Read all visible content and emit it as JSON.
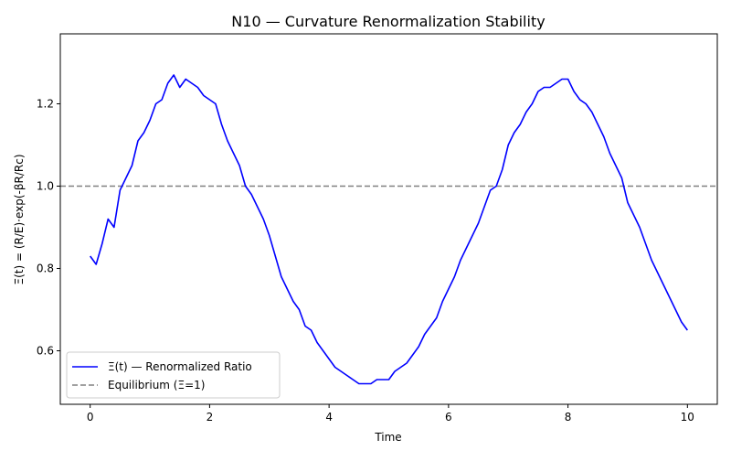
{
  "chart_data": {
    "type": "line",
    "title": "N10 — Curvature Renormalization Stability",
    "xlabel": "Time",
    "ylabel": "Ξ(t) = (R/E)·exp(-βR/Rc)",
    "xlim": [
      -0.5,
      10.5
    ],
    "ylim": [
      0.47,
      1.37
    ],
    "xticks": [
      0,
      2,
      4,
      6,
      8,
      10
    ],
    "yticks": [
      0.6,
      0.8,
      1.0,
      1.2
    ],
    "xtick_labels": [
      "0",
      "2",
      "4",
      "6",
      "8",
      "10"
    ],
    "ytick_labels": [
      "0.6",
      "0.8",
      "1.0",
      "1.2"
    ],
    "grid": false,
    "legend_position": "lower-left",
    "series": [
      {
        "name": "Ξ(t) — Renormalized Ratio",
        "color": "#0000ff",
        "style": "solid",
        "x": [
          0,
          0.1,
          0.2,
          0.3,
          0.4,
          0.5,
          0.6,
          0.7,
          0.8,
          0.9,
          1.0,
          1.1,
          1.2,
          1.3,
          1.4,
          1.5,
          1.6,
          1.7,
          1.8,
          1.9,
          2.0,
          2.1,
          2.2,
          2.3,
          2.4,
          2.5,
          2.6,
          2.7,
          2.8,
          2.9,
          3.0,
          3.1,
          3.2,
          3.3,
          3.4,
          3.5,
          3.6,
          3.7,
          3.8,
          3.9,
          4.0,
          4.1,
          4.2,
          4.3,
          4.4,
          4.5,
          4.6,
          4.7,
          4.8,
          4.9,
          5.0,
          5.1,
          5.2,
          5.3,
          5.4,
          5.5,
          5.6,
          5.7,
          5.8,
          5.9,
          6.0,
          6.1,
          6.2,
          6.3,
          6.4,
          6.5,
          6.6,
          6.7,
          6.8,
          6.9,
          7.0,
          7.1,
          7.2,
          7.3,
          7.4,
          7.5,
          7.6,
          7.7,
          7.8,
          7.9,
          8.0,
          8.1,
          8.2,
          8.3,
          8.4,
          8.5,
          8.6,
          8.7,
          8.8,
          8.9,
          9.0,
          9.1,
          9.2,
          9.3,
          9.4,
          9.5,
          9.6,
          9.7,
          9.8,
          9.9,
          10.0
        ],
        "y": [
          0.83,
          0.81,
          0.86,
          0.92,
          0.9,
          0.99,
          1.02,
          1.05,
          1.11,
          1.13,
          1.16,
          1.2,
          1.21,
          1.25,
          1.27,
          1.24,
          1.26,
          1.25,
          1.24,
          1.22,
          1.21,
          1.2,
          1.15,
          1.11,
          1.08,
          1.05,
          1.0,
          0.98,
          0.95,
          0.92,
          0.88,
          0.83,
          0.78,
          0.75,
          0.72,
          0.7,
          0.66,
          0.65,
          0.62,
          0.6,
          0.58,
          0.56,
          0.55,
          0.54,
          0.53,
          0.52,
          0.52,
          0.52,
          0.53,
          0.53,
          0.53,
          0.55,
          0.56,
          0.57,
          0.59,
          0.61,
          0.64,
          0.66,
          0.68,
          0.72,
          0.75,
          0.78,
          0.82,
          0.85,
          0.88,
          0.91,
          0.95,
          0.99,
          1.0,
          1.04,
          1.1,
          1.13,
          1.15,
          1.18,
          1.2,
          1.23,
          1.24,
          1.24,
          1.25,
          1.26,
          1.26,
          1.23,
          1.21,
          1.2,
          1.18,
          1.15,
          1.12,
          1.08,
          1.05,
          1.02,
          0.96,
          0.93,
          0.9,
          0.86,
          0.82,
          0.79,
          0.76,
          0.73,
          0.7,
          0.67,
          0.65
        ]
      },
      {
        "name": "Equilibrium (Ξ=1)",
        "color": "#808080",
        "style": "dashed",
        "y": 1.0
      }
    ]
  }
}
